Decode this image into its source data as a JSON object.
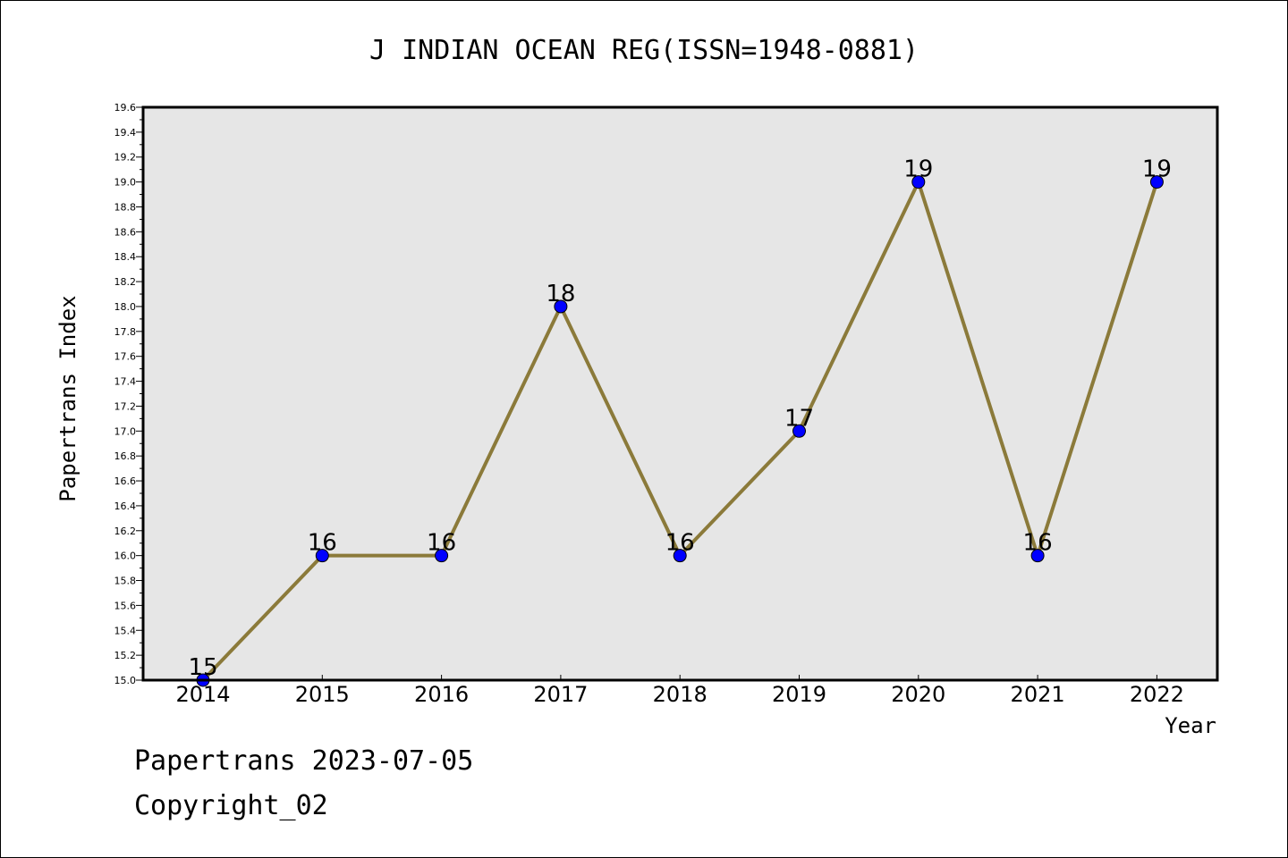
{
  "chart_data": {
    "type": "line",
    "title": "J INDIAN OCEAN REG(ISSN=1948-0881)",
    "xlabel": "Year",
    "ylabel": "Papertrans Index",
    "categories": [
      "2014",
      "2015",
      "2016",
      "2017",
      "2018",
      "2019",
      "2020",
      "2021",
      "2022"
    ],
    "series": [
      {
        "values": [
          15,
          16,
          16,
          18,
          16,
          17,
          19,
          16,
          19
        ]
      }
    ],
    "data_labels": [
      "15",
      "16",
      "16",
      "18",
      "16",
      "17",
      "19",
      "16",
      "19"
    ],
    "ylim": [
      15.0,
      19.6
    ],
    "y_ticks": [
      "15.0",
      "15.2",
      "15.4",
      "15.6",
      "15.8",
      "16.0",
      "16.2",
      "16.4",
      "16.6",
      "16.8",
      "17.0",
      "17.2",
      "17.4",
      "17.6",
      "17.8",
      "18.0",
      "18.2",
      "18.4",
      "18.6",
      "18.8",
      "19.0",
      "19.2",
      "19.4",
      "19.6"
    ],
    "grid": false,
    "legend": "none",
    "colors": {
      "line": "#8b7a3a",
      "marker": "#0000ff",
      "plot_background": "#e6e6e6"
    }
  },
  "footer": {
    "date_line": "Papertrans 2023-07-05",
    "copyright_line": "Copyright_02"
  }
}
